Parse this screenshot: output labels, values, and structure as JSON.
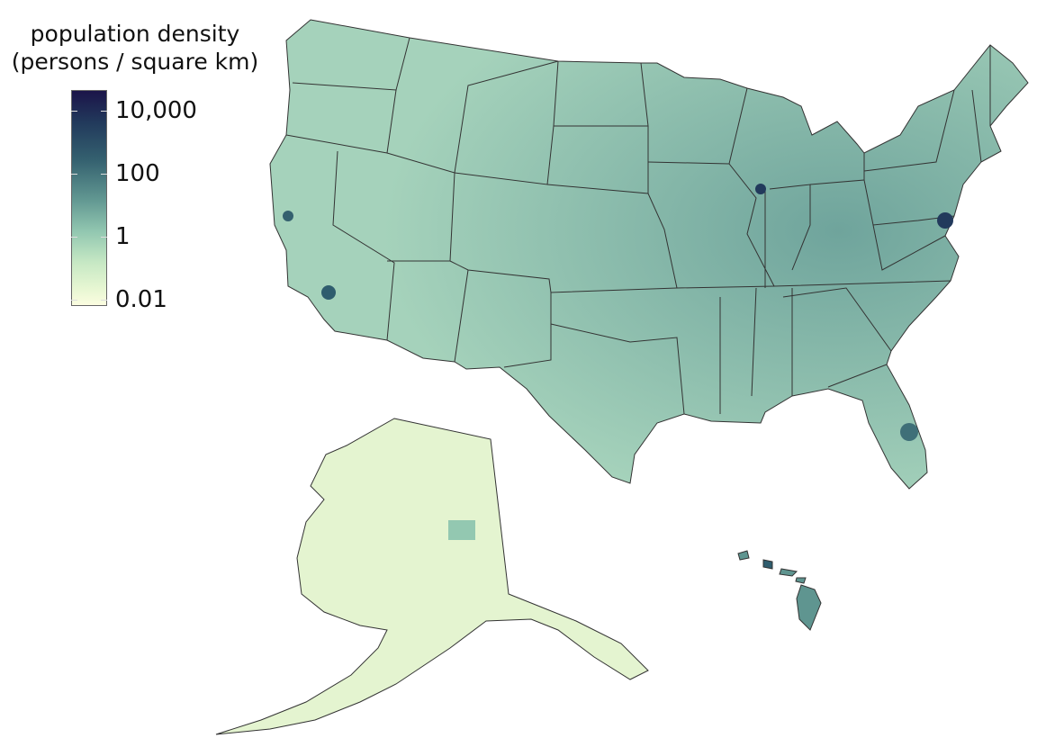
{
  "legend": {
    "title_line1": "population density",
    "title_line2": "(persons / square km)",
    "scale": "log",
    "ticks": [
      "10,000",
      "100",
      "1",
      "0.01"
    ],
    "colors": [
      "#fbfde0",
      "#c6e8c4",
      "#93c8b1",
      "#5f9590",
      "#34606f",
      "#223a5c",
      "#1b1449"
    ]
  },
  "map": {
    "regions": [
      "contiguous-us",
      "alaska",
      "hawaii"
    ],
    "fill_colors": {
      "contiguous-us": "#93c4b2",
      "alaska": "#e4f4d0",
      "hawaii": "#5f9590"
    },
    "border_color": "#333333"
  }
}
